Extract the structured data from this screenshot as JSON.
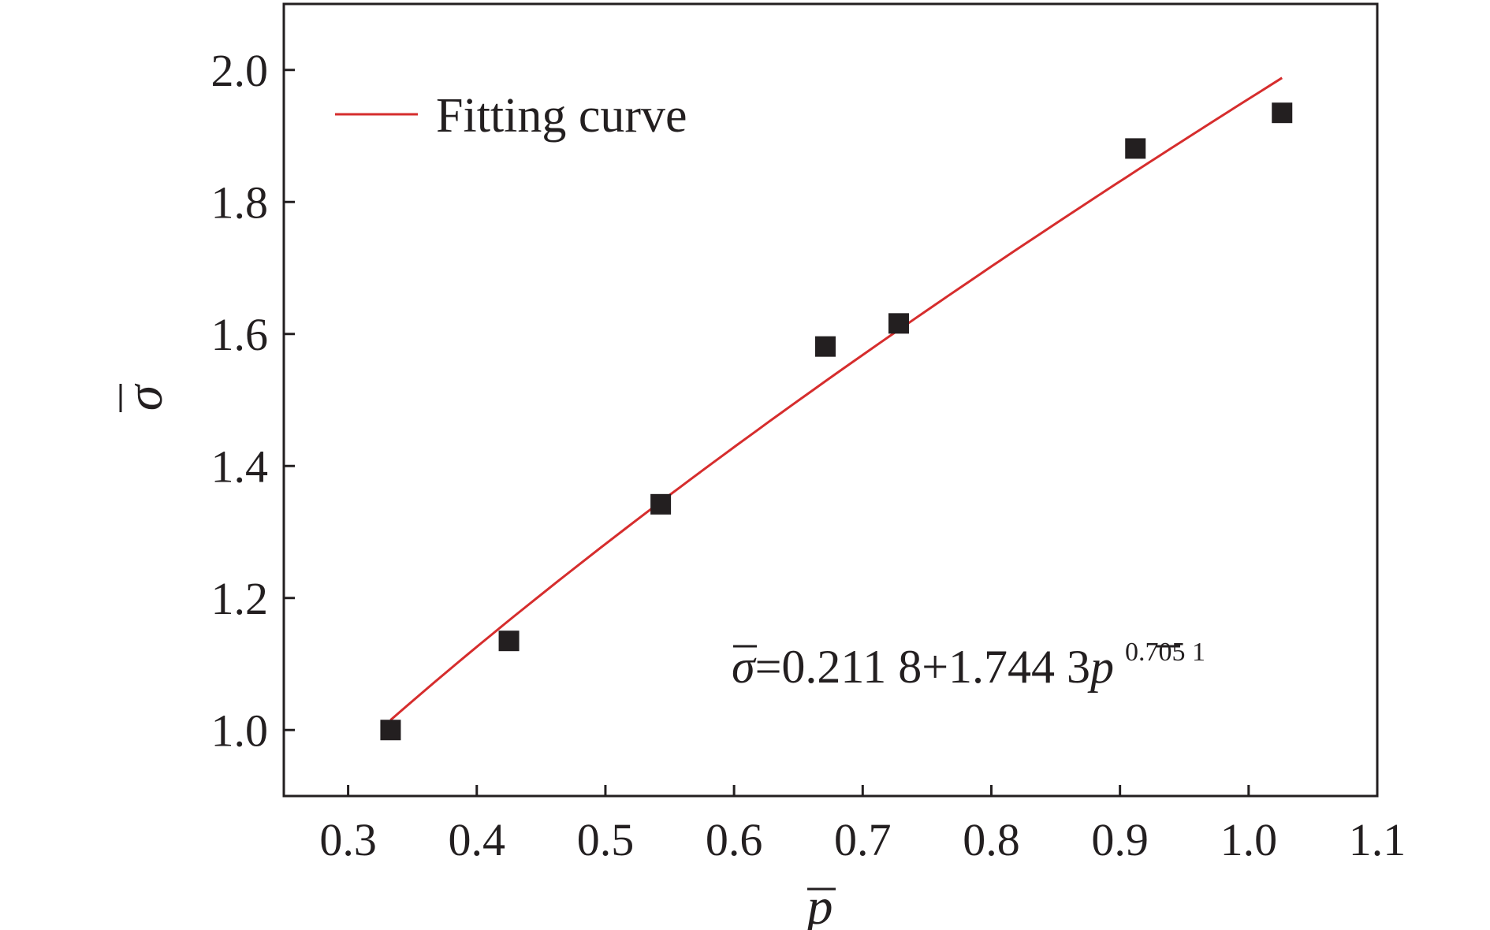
{
  "chart_data": {
    "type": "scatter",
    "xlabel": "p",
    "ylabel": "σ",
    "xlim": [
      0.25,
      1.1
    ],
    "ylim": [
      0.9,
      2.1
    ],
    "xticks": [
      "0.3",
      "0.4",
      "0.5",
      "0.6",
      "0.7",
      "0.8",
      "0.9",
      "1.0",
      "1.1"
    ],
    "yticks": [
      "1.0",
      "1.2",
      "1.4",
      "1.6",
      "1.8",
      "2.0"
    ],
    "xtick_values": [
      0.3,
      0.4,
      0.5,
      0.6,
      0.7,
      0.8,
      0.9,
      1.0,
      1.1
    ],
    "ytick_values": [
      1.0,
      1.2,
      1.4,
      1.6,
      1.8,
      2.0
    ],
    "grid": false,
    "legend_position": "top-left",
    "series": [
      {
        "kind": "scatter",
        "marker": "square",
        "color": "#231f20",
        "x": [
          0.333,
          0.425,
          0.543,
          0.671,
          0.728,
          0.912,
          1.026
        ],
        "y": [
          1.0,
          1.135,
          1.342,
          1.581,
          1.616,
          1.881,
          1.935
        ]
      },
      {
        "kind": "line",
        "name": "Fitting curve",
        "color": "#d62d2d",
        "formula": {
          "a": 0.2118,
          "b": 1.7443,
          "c": 0.7051
        },
        "x_range": [
          0.333,
          1.026
        ]
      }
    ],
    "annotation": {
      "lhs": "σ",
      "middle": "=0.211 8+1.744 3",
      "var": "p",
      "exponent": "0.705 1"
    }
  }
}
